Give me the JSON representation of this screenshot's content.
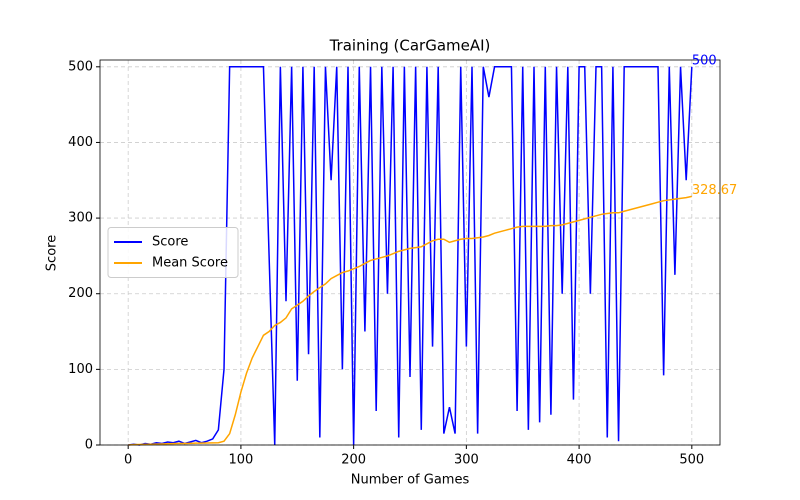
{
  "chart_data": {
    "type": "line",
    "title": "Training (CarGameAI)",
    "x_label": "Number of Games",
    "y_label": "Score",
    "x": [
      0,
      5,
      10,
      15,
      20,
      25,
      30,
      35,
      40,
      45,
      50,
      55,
      60,
      65,
      70,
      75,
      80,
      85,
      90,
      95,
      100,
      105,
      110,
      115,
      120,
      125,
      130,
      135,
      140,
      145,
      150,
      155,
      160,
      165,
      170,
      175,
      180,
      185,
      190,
      195,
      200,
      205,
      210,
      215,
      220,
      225,
      230,
      235,
      240,
      245,
      250,
      255,
      260,
      265,
      270,
      275,
      280,
      285,
      290,
      295,
      300,
      305,
      310,
      315,
      320,
      325,
      330,
      335,
      340,
      345,
      350,
      355,
      360,
      365,
      370,
      375,
      380,
      385,
      390,
      395,
      400,
      405,
      410,
      415,
      420,
      425,
      430,
      435,
      440,
      445,
      450,
      455,
      460,
      465,
      470,
      475,
      480,
      485,
      490,
      495,
      500
    ],
    "series": [
      {
        "name": "Score",
        "color": "#0000ff",
        "values": [
          0,
          1,
          0,
          2,
          1,
          3,
          2,
          4,
          3,
          5,
          2,
          4,
          6,
          3,
          5,
          8,
          20,
          100,
          500,
          500,
          500,
          500,
          500,
          500,
          500,
          250,
          0,
          500,
          190,
          500,
          85,
          500,
          120,
          500,
          10,
          500,
          350,
          500,
          100,
          500,
          0,
          500,
          150,
          500,
          45,
          500,
          200,
          500,
          10,
          500,
          90,
          500,
          20,
          500,
          130,
          500,
          15,
          50,
          15,
          500,
          130,
          500,
          15,
          500,
          460,
          500,
          500,
          500,
          500,
          45,
          500,
          20,
          500,
          30,
          500,
          40,
          500,
          200,
          500,
          60,
          500,
          500,
          200,
          500,
          500,
          10,
          500,
          5,
          500,
          500,
          500,
          500,
          500,
          500,
          500,
          92,
          500,
          225,
          500,
          350,
          500
        ]
      },
      {
        "name": "Mean Score",
        "color": "#ffa500",
        "values": [
          0,
          0.5,
          0.6,
          0.8,
          1,
          1.2,
          1.4,
          1.6,
          1.8,
          2,
          2,
          2.2,
          2.4,
          2.5,
          2.6,
          2.8,
          3,
          5,
          15,
          40,
          70,
          95,
          115,
          130,
          145,
          150,
          158,
          162,
          168,
          180,
          185,
          190,
          197,
          203,
          208,
          213,
          220,
          224,
          228,
          230,
          233,
          236,
          240,
          244,
          246,
          248,
          250,
          253,
          256,
          258,
          260,
          261,
          262,
          266,
          270,
          272,
          272,
          268,
          270,
          272,
          273,
          273,
          274,
          275,
          277,
          280,
          282,
          284,
          286,
          288,
          289,
          289,
          289,
          289,
          289,
          290,
          290,
          291,
          293,
          295,
          297,
          299,
          301,
          303,
          305,
          306,
          307,
          307,
          309,
          311,
          313,
          315,
          317,
          319,
          321,
          323,
          324,
          325,
          326,
          327,
          328.67
        ]
      }
    ],
    "annotations": [
      {
        "text": "500",
        "series": 0
      },
      {
        "text": "328.67",
        "series": 1
      }
    ],
    "xlim": [
      -25,
      525
    ],
    "ylim": [
      0,
      509
    ],
    "xticks": [
      0,
      100,
      200,
      300,
      400,
      500
    ],
    "yticks": [
      0,
      100,
      200,
      300,
      400,
      500
    ],
    "grid": true,
    "legend": "center left"
  }
}
